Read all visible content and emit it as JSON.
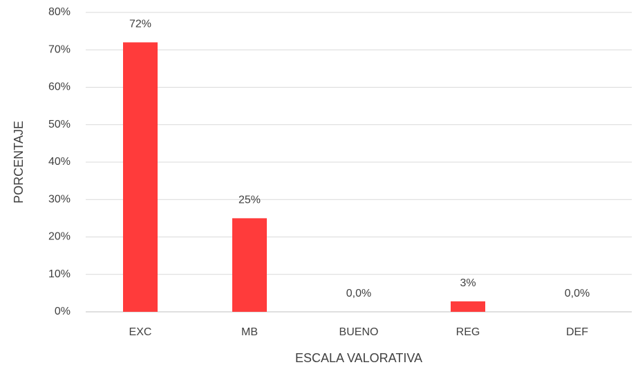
{
  "chart_data": {
    "type": "bar",
    "categories": [
      "EXC",
      "MB",
      "BUENO",
      "REG",
      "DEF"
    ],
    "values": [
      72,
      25,
      0,
      2.8,
      0
    ],
    "value_labels": [
      "72%",
      "25%",
      "0,0%",
      "3%",
      "0,0%"
    ],
    "color": "#ff3b3b",
    "xlabel": "ESCALA VALORATIVA",
    "ylabel": "PORCENTAJE",
    "ylim": [
      0,
      80
    ],
    "yticks": [
      {
        "value": 0,
        "label": "0%"
      },
      {
        "value": 10,
        "label": "10%"
      },
      {
        "value": 20,
        "label": "20%"
      },
      {
        "value": 30,
        "label": "30%"
      },
      {
        "value": 40,
        "label": "40%"
      },
      {
        "value": 50,
        "label": "50%"
      },
      {
        "value": 60,
        "label": "60%"
      },
      {
        "value": 70,
        "label": "70%"
      },
      {
        "value": 80,
        "label": "80%"
      }
    ],
    "grid": true
  }
}
